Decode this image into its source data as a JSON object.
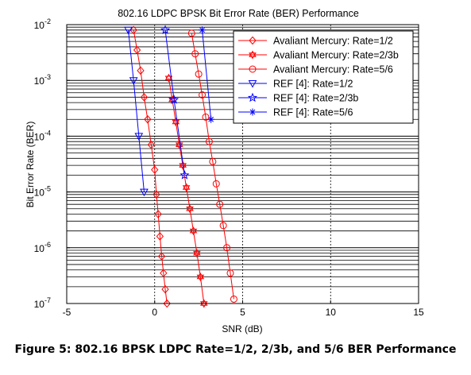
{
  "caption": "Figure 5: 802.16 BPSK LDPC Rate=1/2, 2/3b, and 5/6 BER Performance",
  "chart_data": {
    "type": "line",
    "title": "802.16 LDPC BPSK Bit Error Rate (BER) Performance",
    "xlabel": "SNR (dB)",
    "ylabel": "Bit Error Rate (BER)",
    "xlim": [
      -5,
      15
    ],
    "ylim": [
      1e-07,
      0.01
    ],
    "yscale": "log",
    "grid": true,
    "legend_position": "top-right",
    "x_ticks": [
      -5,
      0,
      5,
      10,
      15
    ],
    "y_ticks": [
      {
        "value": 0.01,
        "base": "10",
        "exp": "-2"
      },
      {
        "value": 0.001,
        "base": "10",
        "exp": "-3"
      },
      {
        "value": 0.0001,
        "base": "10",
        "exp": "-4"
      },
      {
        "value": 1e-05,
        "base": "10",
        "exp": "-5"
      },
      {
        "value": 1e-06,
        "base": "10",
        "exp": "-6"
      },
      {
        "value": 1e-07,
        "base": "10",
        "exp": "-7"
      }
    ],
    "series": [
      {
        "name": "Avaliant Mercury: Rate=1/2",
        "color": "#ff0000",
        "marker": "diamond",
        "x": [
          -1.2,
          -1.0,
          -0.8,
          -0.6,
          -0.4,
          -0.2,
          0.0,
          0.1,
          0.2,
          0.3,
          0.4,
          0.5,
          0.6,
          0.7
        ],
        "y": [
          0.008,
          0.0035,
          0.0015,
          0.0005,
          0.0002,
          7e-05,
          2.5e-05,
          9e-06,
          4e-06,
          1.6e-06,
          7e-07,
          3.5e-07,
          1.8e-07,
          1e-07
        ]
      },
      {
        "name": "Avaliant Mercury: Rate=2/3b",
        "color": "#ff0000",
        "marker": "hexagram",
        "x": [
          0.8,
          1.0,
          1.2,
          1.4,
          1.6,
          1.8,
          2.0,
          2.2,
          2.4,
          2.6,
          2.8
        ],
        "y": [
          0.0011,
          0.00045,
          0.00018,
          7e-05,
          3e-05,
          1.2e-05,
          5e-06,
          2e-06,
          8e-07,
          3e-07,
          1e-07
        ]
      },
      {
        "name": "Avaliant Mercury: Rate=5/6",
        "color": "#ff0000",
        "marker": "circle",
        "x": [
          2.1,
          2.3,
          2.5,
          2.7,
          2.9,
          3.1,
          3.3,
          3.5,
          3.7,
          3.9,
          4.1,
          4.3,
          4.5
        ],
        "y": [
          0.007,
          0.003,
          0.0013,
          0.00055,
          0.00022,
          8e-05,
          3.5e-05,
          1.4e-05,
          6e-06,
          2.5e-06,
          1e-06,
          3.5e-07,
          1.2e-07
        ]
      },
      {
        "name": "REF [4]: Rate=1/2",
        "color": "#0000ff",
        "marker": "triangle-down",
        "x": [
          -1.5,
          -1.2,
          -0.9,
          -0.6
        ],
        "y": [
          0.008,
          0.001,
          0.0001,
          1e-05
        ]
      },
      {
        "name": "REF [4]: Rate=2/3b",
        "color": "#0000ff",
        "marker": "star",
        "x": [
          0.6,
          1.1,
          1.7
        ],
        "y": [
          0.008,
          0.00045,
          2e-05
        ]
      },
      {
        "name": "REF [4]: Rate=5/6",
        "color": "#0000ff",
        "marker": "plus-star",
        "x": [
          2.7,
          3.2
        ],
        "y": [
          0.008,
          0.0002
        ]
      }
    ]
  }
}
